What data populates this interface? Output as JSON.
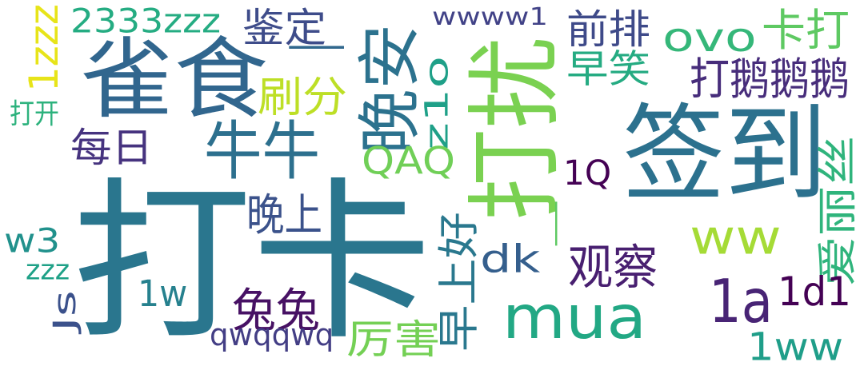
{
  "words": [
    {
      "text": "打卡",
      "color": "#2a768e",
      "rotated": false
    },
    {
      "text": "签到",
      "color": "#2c718e",
      "rotated": false
    },
    {
      "text": "雀食",
      "color": "#31668e",
      "rotated": false
    },
    {
      "text": "打扰",
      "color": "#7ad151",
      "rotated": true
    },
    {
      "text": "mua",
      "color": "#22a884",
      "rotated": false
    },
    {
      "text": "牛牛",
      "color": "#2d708e",
      "rotated": false
    },
    {
      "text": "ww",
      "color": "#a5db36",
      "rotated": false
    },
    {
      "text": "晚安",
      "color": "#2c728e",
      "rotated": true
    },
    {
      "text": "1a",
      "color": "#482475",
      "rotated": false
    },
    {
      "text": "ovo",
      "color": "#35b779",
      "rotated": false
    },
    {
      "text": "卡打",
      "color": "#5ec962",
      "rotated": false
    },
    {
      "text": "前排",
      "color": "#3e4a89",
      "rotated": false
    },
    {
      "text": "早笑",
      "color": "#25ab82",
      "rotated": false
    },
    {
      "text": "打鹅鹅鹅",
      "color": "#472d7b",
      "rotated": false
    },
    {
      "text": "鉴定",
      "color": "#3e4c8a",
      "rotated": false
    },
    {
      "text": "2333zzz",
      "color": "#25ac82",
      "rotated": false
    },
    {
      "text": "wwww1",
      "color": "#414287",
      "rotated": false
    },
    {
      "text": "1zzz",
      "color": "#e7e419",
      "rotated": true
    },
    {
      "text": "一",
      "color": "#30678d",
      "rotated": false
    },
    {
      "text": "刷分",
      "color": "#bddf26",
      "rotated": false
    },
    {
      "text": "打开",
      "color": "#2db27d",
      "rotated": false
    },
    {
      "text": "z1o",
      "color": "#1fa088",
      "rotated": true
    },
    {
      "text": "每日",
      "color": "#46337f",
      "rotated": false
    },
    {
      "text": "QAQ",
      "color": "#70cf57",
      "rotated": false
    },
    {
      "text": "1Q",
      "color": "#440154",
      "rotated": false
    },
    {
      "text": "爱丽丝",
      "color": "#2fb47c",
      "rotated": true
    },
    {
      "text": "晚上",
      "color": "#3b528b",
      "rotated": false
    },
    {
      "text": "一",
      "color": "#5ec962",
      "rotated": true
    },
    {
      "text": "w3",
      "color": "#21918c",
      "rotated": false
    },
    {
      "text": "早上好",
      "color": "#2a788e",
      "rotated": true
    },
    {
      "text": "dk",
      "color": "#355f8d",
      "rotated": false
    },
    {
      "text": "观察",
      "color": "#481f70",
      "rotated": false
    },
    {
      "text": "zzz",
      "color": "#1fa187",
      "rotated": false
    },
    {
      "text": "兔兔",
      "color": "#471164",
      "rotated": false
    },
    {
      "text": "1w",
      "color": "#26818e",
      "rotated": false
    },
    {
      "text": "1d1",
      "color": "#440154",
      "rotated": false
    },
    {
      "text": "Js",
      "color": "#3b518b",
      "rotated": true
    },
    {
      "text": "qwqqwq",
      "color": "#433e85",
      "rotated": false
    },
    {
      "text": "厉害",
      "color": "#74d055",
      "rotated": false
    },
    {
      "text": "1ww",
      "color": "#1f9e89",
      "rotated": false
    }
  ]
}
